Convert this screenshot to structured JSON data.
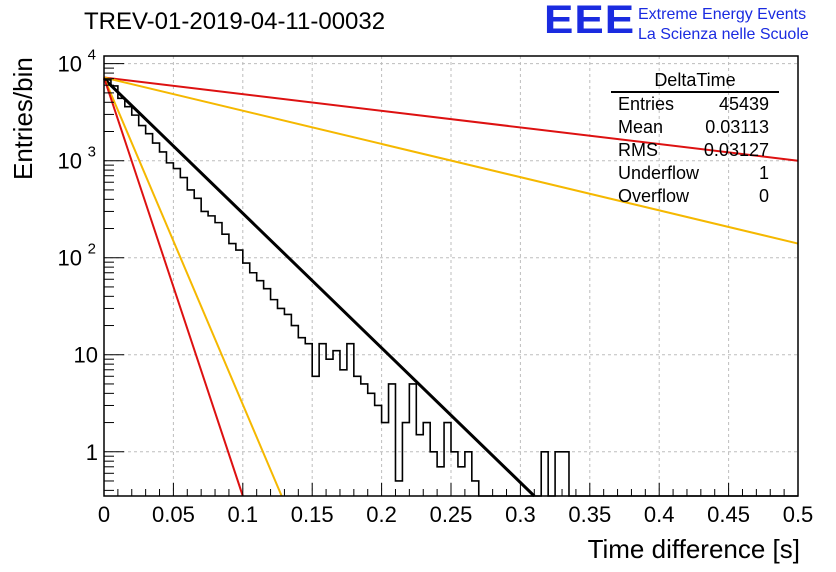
{
  "header": {
    "title": "TREV-01-2019-04-11-00032"
  },
  "logo": {
    "mark": "EEE",
    "line1": "Extreme Energy Events",
    "line2": "La Scienza nelle Scuole",
    "color": "#1a2be0"
  },
  "stats_box": {
    "title": "DeltaTime",
    "rows": [
      {
        "key": "Entries",
        "value": "45439"
      },
      {
        "key": "Mean",
        "value": "0.03113"
      },
      {
        "key": "RMS",
        "value": "0.03127"
      },
      {
        "key": "Underflow",
        "value": "1"
      },
      {
        "key": "Overflow",
        "value": "0"
      }
    ]
  },
  "chart_data": {
    "type": "line",
    "title": "TREV-01-2019-04-11-00032",
    "xlabel": "Time difference [s]",
    "ylabel": "Entries/bin",
    "xlim": [
      0,
      0.5
    ],
    "ylim": [
      0.35,
      12000
    ],
    "y_scale": "log",
    "grid": true,
    "x_ticks": [
      "0",
      "0.05",
      "0.1",
      "0.15",
      "0.2",
      "0.25",
      "0.3",
      "0.35",
      "0.4",
      "0.45",
      "0.5"
    ],
    "x_tick_values": [
      0,
      0.05,
      0.1,
      0.15,
      0.2,
      0.25,
      0.3,
      0.35,
      0.4,
      0.45,
      0.5
    ],
    "y_ticks": [
      {
        "value": 1,
        "base": "1",
        "exp": ""
      },
      {
        "value": 10,
        "base": "10",
        "exp": ""
      },
      {
        "value": 100,
        "base": "10",
        "exp": "2"
      },
      {
        "value": 1000,
        "base": "10",
        "exp": "3"
      },
      {
        "value": 10000,
        "base": "10",
        "exp": "4"
      }
    ],
    "histogram": {
      "name": "DeltaTime",
      "color": "#000000",
      "bin_width": 0.005,
      "x_start": 0,
      "counts": [
        6800,
        5900,
        4400,
        3600,
        2950,
        2300,
        1900,
        1520,
        1230,
        950,
        830,
        670,
        500,
        410,
        300,
        270,
        230,
        175,
        140,
        120,
        88,
        70,
        58,
        48,
        37,
        30,
        26,
        20,
        15,
        13,
        6,
        13,
        9,
        11,
        7,
        13,
        6,
        5,
        4,
        3,
        2,
        5,
        0.5,
        2,
        5,
        1.5,
        2,
        1,
        0.7,
        2,
        1,
        0.7,
        1,
        0.5,
        0.3,
        0.3,
        0.3,
        0.3,
        0.3,
        0.3,
        0.3,
        0.3,
        0.3,
        1,
        0.3,
        1,
        1,
        0.3,
        0.3,
        0.3,
        0.3,
        0.3,
        0.3,
        0.3,
        0.3,
        0.3,
        0.3,
        0.3,
        0.3,
        0.3,
        0.3,
        0.3,
        0.3,
        0.3,
        0.3,
        0.3,
        0.3,
        0.3,
        0.3,
        0.3,
        0.3,
        0.3,
        0.3,
        0.3,
        0.3,
        0.3,
        0.3,
        0.3,
        0.3,
        0.3
      ]
    },
    "series": [
      {
        "color": "#000000",
        "style": "fit",
        "x": [
          0,
          0.31
        ],
        "y": [
          7000,
          0.35
        ]
      },
      {
        "color": "#dd1111",
        "style": "exp",
        "x": [
          0,
          0.5
        ],
        "y": [
          7200,
          1000
        ]
      },
      {
        "color": "#f5b800",
        "style": "exp",
        "x": [
          0,
          0.5
        ],
        "y": [
          7200,
          140
        ]
      },
      {
        "color": "#f5b800",
        "style": "exp",
        "x": [
          0,
          0.128
        ],
        "y": [
          7200,
          0.35
        ]
      },
      {
        "color": "#dd1111",
        "style": "exp",
        "x": [
          0,
          0.1
        ],
        "y": [
          7200,
          0.35
        ]
      }
    ]
  }
}
